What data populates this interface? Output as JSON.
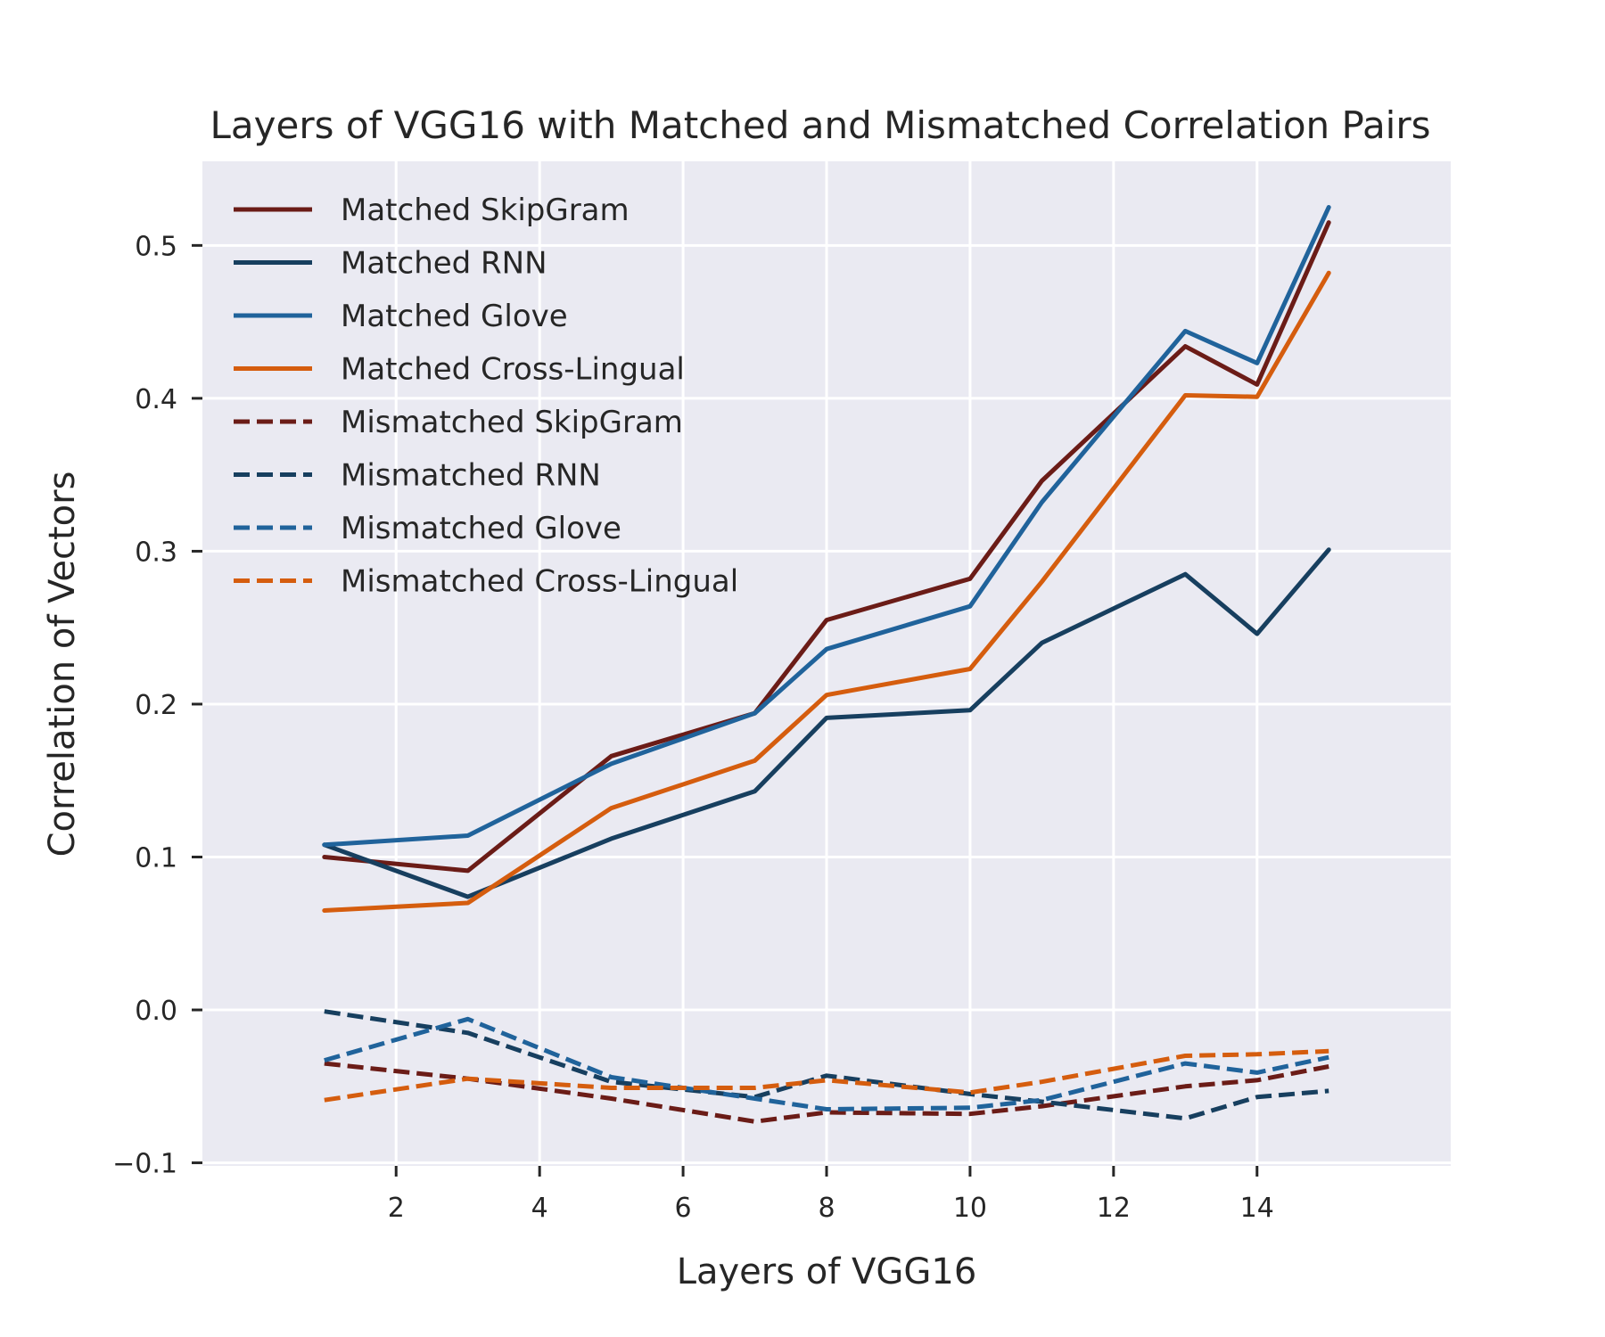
{
  "chart_data": {
    "type": "line",
    "title": "Layers of VGG16 with Matched and Mismatched Correlation Pairs",
    "xlabel": "Layers of VGG16",
    "ylabel": "Correlation of Vectors",
    "xlim": [
      -0.7,
      16.7
    ],
    "ylim": [
      -0.102,
      0.555
    ],
    "xticks": [
      2,
      4,
      6,
      8,
      10,
      12,
      14
    ],
    "xtick_labels": [
      "2",
      "4",
      "6",
      "8",
      "10",
      "12",
      "14"
    ],
    "yticks": [
      -0.1,
      0.0,
      0.1,
      0.2,
      0.3,
      0.4,
      0.5
    ],
    "ytick_labels": [
      "−0.1",
      "0.0",
      "0.1",
      "0.2",
      "0.3",
      "0.4",
      "0.5"
    ],
    "grid": true,
    "legend_position": "upper-left",
    "x": [
      1,
      3,
      5,
      7,
      8,
      10,
      11,
      13,
      14,
      15
    ],
    "series": [
      {
        "name": "Matched SkipGram",
        "style": "solid",
        "color": "#6b1c17",
        "values": [
          0.1,
          0.091,
          0.166,
          0.194,
          0.255,
          0.282,
          0.346,
          0.434,
          0.409,
          0.515
        ]
      },
      {
        "name": "Matched RNN",
        "style": "solid",
        "color": "#173f5f",
        "values": [
          0.108,
          0.074,
          0.112,
          0.143,
          0.191,
          0.196,
          0.24,
          0.285,
          0.246,
          0.301
        ]
      },
      {
        "name": "Matched Glove",
        "style": "solid",
        "color": "#20639b",
        "values": [
          0.108,
          0.114,
          0.161,
          0.194,
          0.236,
          0.264,
          0.332,
          0.444,
          0.423,
          0.525
        ]
      },
      {
        "name": "Matched Cross-Lingual",
        "style": "solid",
        "color": "#d55d0e",
        "values": [
          0.065,
          0.07,
          0.132,
          0.163,
          0.206,
          0.223,
          0.28,
          0.402,
          0.401,
          0.482
        ]
      },
      {
        "name": "Mismatched SkipGram",
        "style": "dashed",
        "color": "#6b1c17",
        "values": [
          -0.035,
          -0.045,
          -0.058,
          -0.073,
          -0.067,
          -0.068,
          -0.063,
          -0.05,
          -0.046,
          -0.037
        ]
      },
      {
        "name": "Mismatched RNN",
        "style": "dashed",
        "color": "#173f5f",
        "values": [
          -0.001,
          -0.015,
          -0.047,
          -0.057,
          -0.043,
          -0.055,
          -0.06,
          -0.071,
          -0.057,
          -0.053
        ]
      },
      {
        "name": "Mismatched Glove",
        "style": "dashed",
        "color": "#20639b",
        "values": [
          -0.033,
          -0.006,
          -0.044,
          -0.058,
          -0.065,
          -0.064,
          -0.059,
          -0.035,
          -0.041,
          -0.031
        ]
      },
      {
        "name": "Mismatched Cross-Lingual",
        "style": "dashed",
        "color": "#d55d0e",
        "values": [
          -0.059,
          -0.045,
          -0.051,
          -0.051,
          -0.046,
          -0.054,
          -0.047,
          -0.03,
          -0.029,
          -0.027
        ]
      }
    ]
  }
}
